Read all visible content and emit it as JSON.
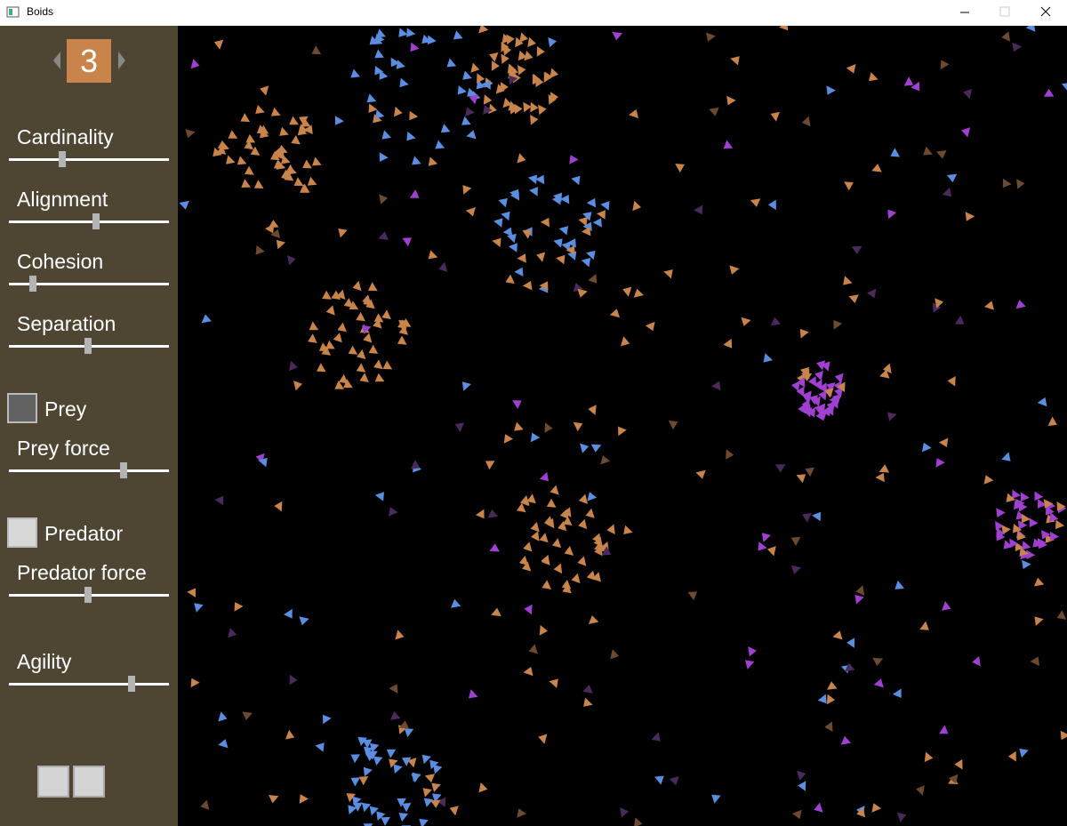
{
  "window": {
    "title": "Boids"
  },
  "counter": {
    "value": 3
  },
  "sliders": [
    {
      "label": "Cardinality"
    },
    {
      "label": "Alignment"
    },
    {
      "label": "Cohesion"
    },
    {
      "label": "Separation"
    },
    {
      "label": "Prey force"
    },
    {
      "label": "Predator force"
    },
    {
      "label": "Agility"
    }
  ],
  "checkboxes": [
    {
      "label": "Prey"
    },
    {
      "label": "Predator"
    }
  ]
}
